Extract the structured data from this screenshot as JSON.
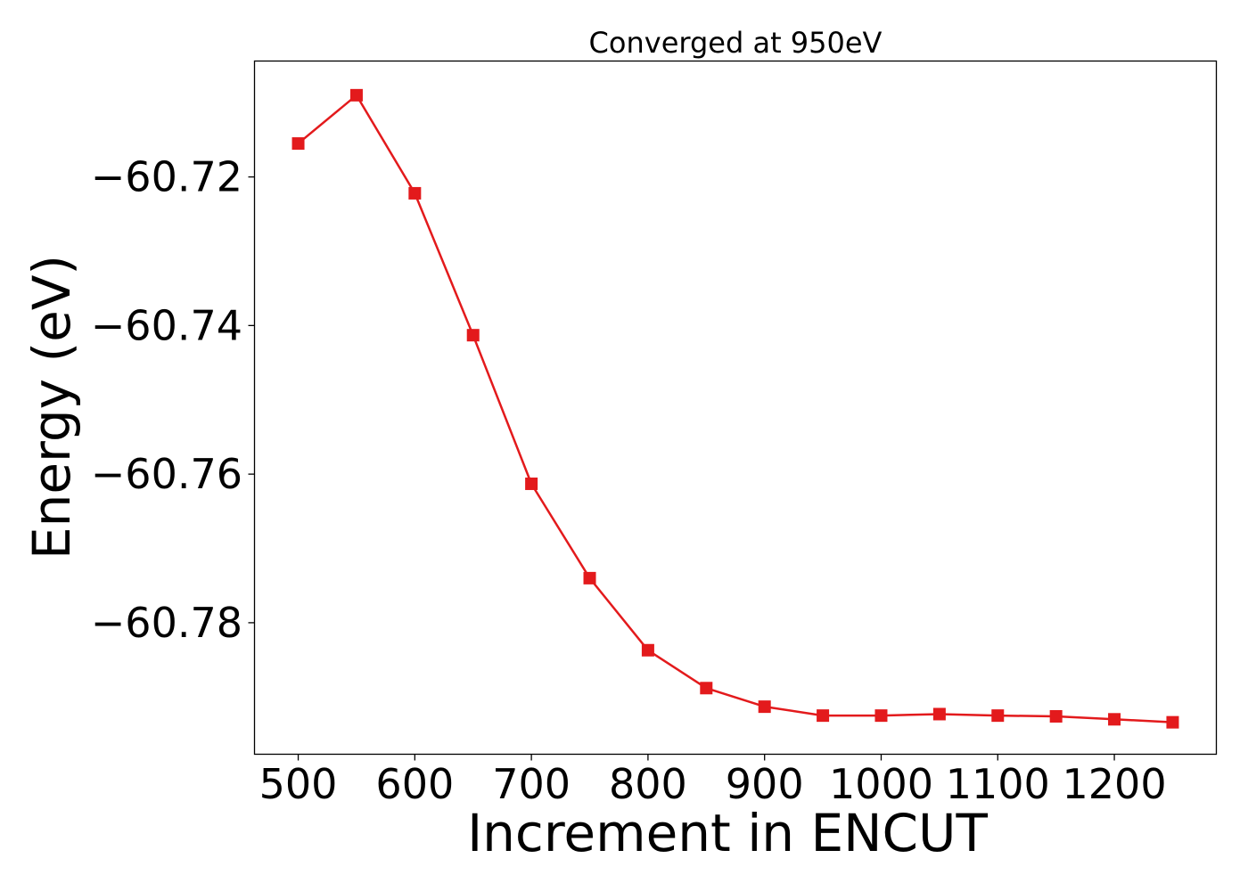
{
  "chart_data": {
    "type": "line",
    "title": "Converged at 950eV",
    "xlabel": "Increment in ENCUT",
    "ylabel": "Energy (eV)",
    "xlim": [
      462.5,
      1287.5
    ],
    "ylim": [
      -60.7977,
      -60.7044
    ],
    "xticks": [
      500,
      600,
      700,
      800,
      900,
      1000,
      1100,
      1200
    ],
    "yticks": [
      -60.72,
      -60.74,
      -60.76,
      -60.78
    ],
    "ytick_labels": [
      "−60.72",
      "−60.74",
      "−60.76",
      "−60.78"
    ],
    "grid": false,
    "marker": "square",
    "color": "#e31a1c",
    "series": [
      {
        "x": [
          500,
          550,
          600,
          650,
          700,
          750,
          800,
          850,
          900,
          950,
          1000,
          1050,
          1100,
          1150,
          1200,
          1250
        ],
        "y": [
          -60.7155,
          -60.709,
          -60.7222,
          -60.7413,
          -60.7613,
          -60.774,
          -60.7837,
          -60.7888,
          -60.7913,
          -60.7925,
          -60.7925,
          -60.7923,
          -60.7925,
          -60.7926,
          -60.793,
          -60.7934
        ]
      }
    ]
  }
}
